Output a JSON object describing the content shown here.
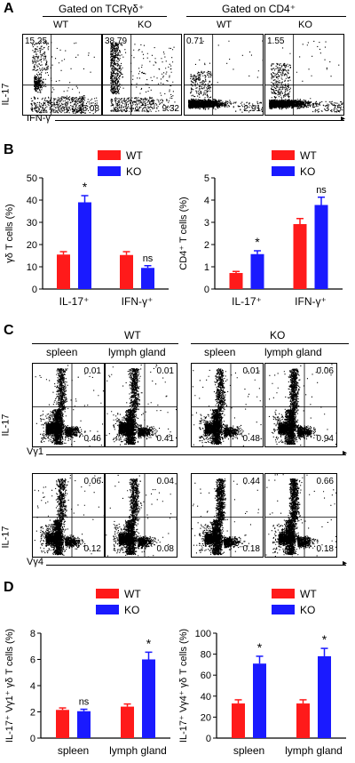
{
  "panels": {
    "A": {
      "letter": "A",
      "group_left": "Gated on TCRγδ⁺",
      "group_right": "Gated on CD4⁺",
      "col_labels": [
        "WT",
        "KO",
        "WT",
        "KO"
      ],
      "y_axis": "IL-17",
      "x_axis": "IFN-γ",
      "quadrants": [
        {
          "ul": "15.25",
          "lr": "15.08"
        },
        {
          "ul": "38.79",
          "lr": "9.32"
        },
        {
          "ul": "0.71",
          "lr": "2.91"
        },
        {
          "ul": "1.55",
          "lr": "3.75"
        }
      ]
    },
    "B": {
      "letter": "B"
    },
    "C": {
      "letter": "C",
      "group_wt": "WT",
      "group_ko": "KO",
      "col_labels": [
        "spleen",
        "lymph gland",
        "spleen",
        "lymph gland"
      ],
      "row1_x": "Vγ1",
      "row2_x": "Vγ4",
      "y_axis": "IL-17",
      "row1": [
        {
          "ur": "0.01",
          "lr": "0.46"
        },
        {
          "ur": "0.01",
          "lr": "0.41"
        },
        {
          "ur": "0.01",
          "lr": "0.48"
        },
        {
          "ur": "0.06",
          "lr": "0.94"
        }
      ],
      "row2": [
        {
          "ur": "0.06",
          "lr": "0.12"
        },
        {
          "ur": "0.04",
          "lr": "0.08"
        },
        {
          "ur": "0.44",
          "lr": "0.18"
        },
        {
          "ur": "0.66",
          "lr": "0.18"
        }
      ]
    },
    "D": {
      "letter": "D"
    }
  },
  "colors": {
    "wt": "#ff1a1a",
    "ko": "#1a1aff"
  },
  "chart_data": [
    {
      "type": "bar",
      "panel": "B-left",
      "categories": [
        "IL-17⁺",
        "IFN-γ⁺"
      ],
      "series": [
        {
          "name": "WT",
          "values": [
            15.5,
            15.3
          ],
          "errors": [
            1.3,
            1.5
          ]
        },
        {
          "name": "KO",
          "values": [
            39.0,
            9.5
          ],
          "errors": [
            3.0,
            1.0
          ]
        }
      ],
      "annotations": [
        "*",
        "ns"
      ],
      "ylabel": "γδ T cells (%)",
      "ylim": [
        0,
        50
      ],
      "yticks": [
        "0",
        "10",
        "20",
        "30",
        "40",
        "50"
      ],
      "legend": [
        "WT",
        "KO"
      ]
    },
    {
      "type": "bar",
      "panel": "B-right",
      "categories": [
        "IL-17⁺",
        "IFN-γ⁺"
      ],
      "series": [
        {
          "name": "WT",
          "values": [
            0.72,
            2.92
          ],
          "errors": [
            0.07,
            0.25
          ]
        },
        {
          "name": "KO",
          "values": [
            1.57,
            3.78
          ],
          "errors": [
            0.15,
            0.35
          ]
        }
      ],
      "annotations": [
        "*",
        "ns"
      ],
      "ylabel": "CD4⁺ T cells (%)",
      "ylim": [
        0,
        5
      ],
      "yticks": [
        "0",
        "1",
        "2",
        "3",
        "4",
        "5"
      ],
      "legend": [
        "WT",
        "KO"
      ]
    },
    {
      "type": "bar",
      "panel": "D-left",
      "categories": [
        "spleen",
        "lymph gland"
      ],
      "series": [
        {
          "name": "WT",
          "values": [
            2.15,
            2.4
          ],
          "errors": [
            0.15,
            0.2
          ]
        },
        {
          "name": "KO",
          "values": [
            2.05,
            6.0
          ],
          "errors": [
            0.15,
            0.55
          ]
        }
      ],
      "annotations": [
        "ns",
        "*"
      ],
      "ylabel": "IL-17⁺ Vγ1⁺ γδ T cells (%)",
      "ylim": [
        0,
        8
      ],
      "yticks": [
        "0",
        "2",
        "4",
        "6",
        "8"
      ],
      "legend": [
        "WT",
        "KO"
      ]
    },
    {
      "type": "bar",
      "panel": "D-right",
      "categories": [
        "spleen",
        "lymph gland"
      ],
      "series": [
        {
          "name": "WT",
          "values": [
            33.0,
            33.0
          ],
          "errors": [
            3.5,
            3.5
          ]
        },
        {
          "name": "KO",
          "values": [
            71.0,
            78.0
          ],
          "errors": [
            7.0,
            7.5
          ]
        }
      ],
      "annotations": [
        "*",
        "*"
      ],
      "ylabel": "IL-17⁺ Vγ4⁺ γδ T cells (%)",
      "ylim": [
        0,
        100
      ],
      "yticks": [
        "0",
        "20",
        "40",
        "60",
        "80",
        "100"
      ],
      "legend": [
        "WT",
        "KO"
      ]
    }
  ]
}
